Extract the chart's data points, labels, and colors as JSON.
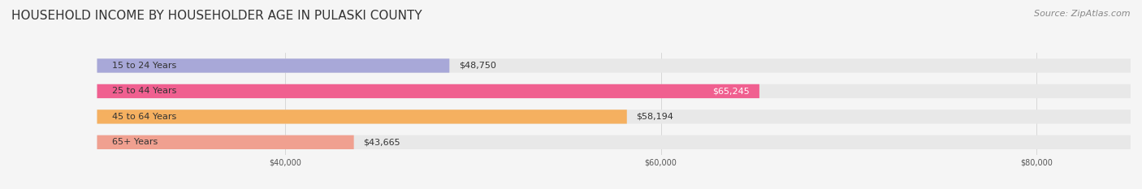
{
  "title": "HOUSEHOLD INCOME BY HOUSEHOLDER AGE IN PULASKI COUNTY",
  "source": "Source: ZipAtlas.com",
  "categories": [
    "15 to 24 Years",
    "25 to 44 Years",
    "45 to 64 Years",
    "65+ Years"
  ],
  "values": [
    48750,
    65245,
    58194,
    43665
  ],
  "value_labels": [
    "$48,750",
    "$65,245",
    "$58,194",
    "$43,665"
  ],
  "bar_colors": [
    "#a8a8d8",
    "#f06090",
    "#f5b060",
    "#f0a090"
  ],
  "label_colors": [
    "#333333",
    "#ffffff",
    "#333333",
    "#333333"
  ],
  "bg_color": "#f5f5f5",
  "bar_bg_color": "#e8e8e8",
  "xlim_min": 30000,
  "xlim_max": 85000,
  "xticks": [
    40000,
    60000,
    80000
  ],
  "xtick_labels": [
    "$40,000",
    "$60,000",
    "$80,000"
  ],
  "title_fontsize": 11,
  "source_fontsize": 8,
  "label_fontsize": 8,
  "bar_height": 0.55
}
